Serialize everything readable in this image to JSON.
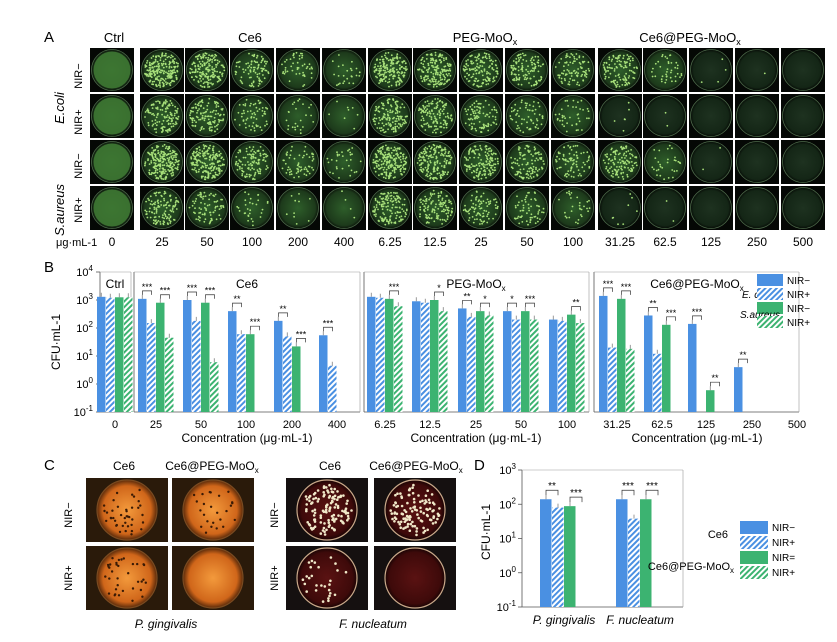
{
  "panel_a": {
    "letter": "A",
    "groups": [
      "Ctrl",
      "Ce6",
      "PEG-MoO",
      "Ce6@PEG-MoO"
    ],
    "sub_x": "x",
    "rows": [
      {
        "bacteria": "E.coli",
        "nir": [
          "NIR−",
          "NIR+"
        ]
      },
      {
        "bacteria": "S.aureus",
        "nir": [
          "NIR−",
          "NIR+"
        ]
      }
    ],
    "unit": "μg·mL-1",
    "concentrations": [
      "0",
      "25",
      "50",
      "100",
      "200",
      "400",
      "6.25",
      "12.5",
      "25",
      "50",
      "100",
      "31.25",
      "62.5",
      "125",
      "250",
      "500"
    ]
  },
  "panel_b": {
    "letter": "B",
    "ylabel": "CFU·mL-1",
    "y_ticks": [
      "10",
      "10",
      "10",
      "10",
      "10",
      "10"
    ],
    "y_exps": [
      "4",
      "3",
      "2",
      "1",
      "0",
      "-1"
    ],
    "legend": {
      "ecoli": "E. coli",
      "saureus": "S.aureus",
      "nir_minus": "NIR−",
      "nir_plus": "NIR+"
    },
    "xlabel": "Concentration (μg·mL-1)"
  },
  "panel_c": {
    "letter": "C",
    "col_labels": [
      "Ce6",
      "Ce6@PEG-MoO",
      "Ce6",
      "Ce6@PEG-MoO"
    ],
    "row_labels": [
      "NIR−",
      "NIR+",
      "NIR−",
      "NIR+"
    ],
    "species": [
      "P. gingivalis",
      "F. nucleatum"
    ]
  },
  "panel_d": {
    "letter": "D",
    "ylabel": "CFU·mL-1",
    "legend": {
      "group1": "Ce6",
      "group2": "Ce6@PEG-MoO",
      "g1_minus": "NIR−",
      "g1_plus": "NIR+",
      "g2_minus": "NIR=",
      "g2_plus": "NIR+"
    }
  },
  "colors": {
    "blue": "#4a90e2",
    "green": "#3cb371",
    "ecoli_dish": "#1f3d1f",
    "orange_dish": "#d6761f",
    "dark_red_dish": "#4a0d0d"
  },
  "chart_data": [
    {
      "type": "bar",
      "panel": "B",
      "yscale": "log",
      "ylim": [
        0.1,
        10000
      ],
      "ylabel": "CFU·mL-1",
      "legend_position": "top-right",
      "series_order": [
        "E. coli NIR−",
        "E. coli NIR+",
        "S.aureus NIR−",
        "S.aureus NIR+"
      ],
      "groups": [
        {
          "name": "Ctrl",
          "categories": [
            "0"
          ],
          "values": [
            [
              1300,
              1200,
              1250,
              1250
            ]
          ],
          "sig": [
            [
              "",
              ""
            ]
          ]
        },
        {
          "name": "Ce6",
          "categories": [
            "25",
            "50",
            "100",
            "200",
            "400"
          ],
          "values": [
            [
              1100,
              150,
              800,
              45
            ],
            [
              1000,
              180,
              800,
              6
            ],
            [
              400,
              60,
              60,
              0
            ],
            [
              180,
              50,
              22,
              0
            ],
            [
              55,
              4.5,
              0,
              0
            ]
          ],
          "sig": [
            [
              "***",
              "***"
            ],
            [
              "***",
              "***"
            ],
            [
              "**",
              "***"
            ],
            [
              "**",
              "***"
            ],
            [
              "***",
              ""
            ]
          ]
        },
        {
          "name": "PEG-MoO",
          "categories": [
            "6.25",
            "12.5",
            "25",
            "50",
            "100"
          ],
          "values": [
            [
              1300,
              1200,
              1100,
              600
            ],
            [
              900,
              800,
              1000,
              400
            ],
            [
              500,
              250,
              400,
              280
            ],
            [
              400,
              200,
              400,
              200
            ],
            [
              200,
              180,
              300,
              150
            ]
          ],
          "sig": [
            [
              "",
              "***"
            ],
            [
              "",
              "*"
            ],
            [
              "**",
              "*"
            ],
            [
              "*",
              "***"
            ],
            [
              "",
              "**"
            ]
          ]
        },
        {
          "name": "Ce6@PEG-MoO",
          "categories": [
            "31.25",
            "62.5",
            "125",
            "250",
            "500"
          ],
          "values": [
            [
              1400,
              20,
              1100,
              18
            ],
            [
              280,
              12,
              130,
              0
            ],
            [
              140,
              0,
              0.6,
              0
            ],
            [
              4,
              0,
              0,
              0
            ],
            [
              0,
              0,
              0,
              0
            ]
          ],
          "sig": [
            [
              "***",
              "***"
            ],
            [
              "**",
              "***"
            ],
            [
              "***",
              "**"
            ],
            [
              "**",
              ""
            ],
            [
              "",
              ""
            ]
          ]
        }
      ]
    },
    {
      "type": "bar",
      "panel": "D",
      "yscale": "log",
      "ylim": [
        0.1,
        1000
      ],
      "ylabel": "CFU·mL-1",
      "legend_position": "right",
      "categories": [
        "P. gingivalis",
        "F. nucleatum"
      ],
      "series": [
        {
          "name": "Ce6 NIR−",
          "values": [
            140,
            140
          ]
        },
        {
          "name": "Ce6 NIR+",
          "values": [
            80,
            38
          ]
        },
        {
          "name": "Ce6@PEG-MoO NIR=",
          "values": [
            88,
            140
          ]
        },
        {
          "name": "Ce6@PEG-MoO NIR+",
          "values": [
            0,
            0
          ]
        }
      ],
      "sig": [
        [
          "**",
          "***"
        ],
        [
          "***",
          "***"
        ]
      ]
    }
  ]
}
